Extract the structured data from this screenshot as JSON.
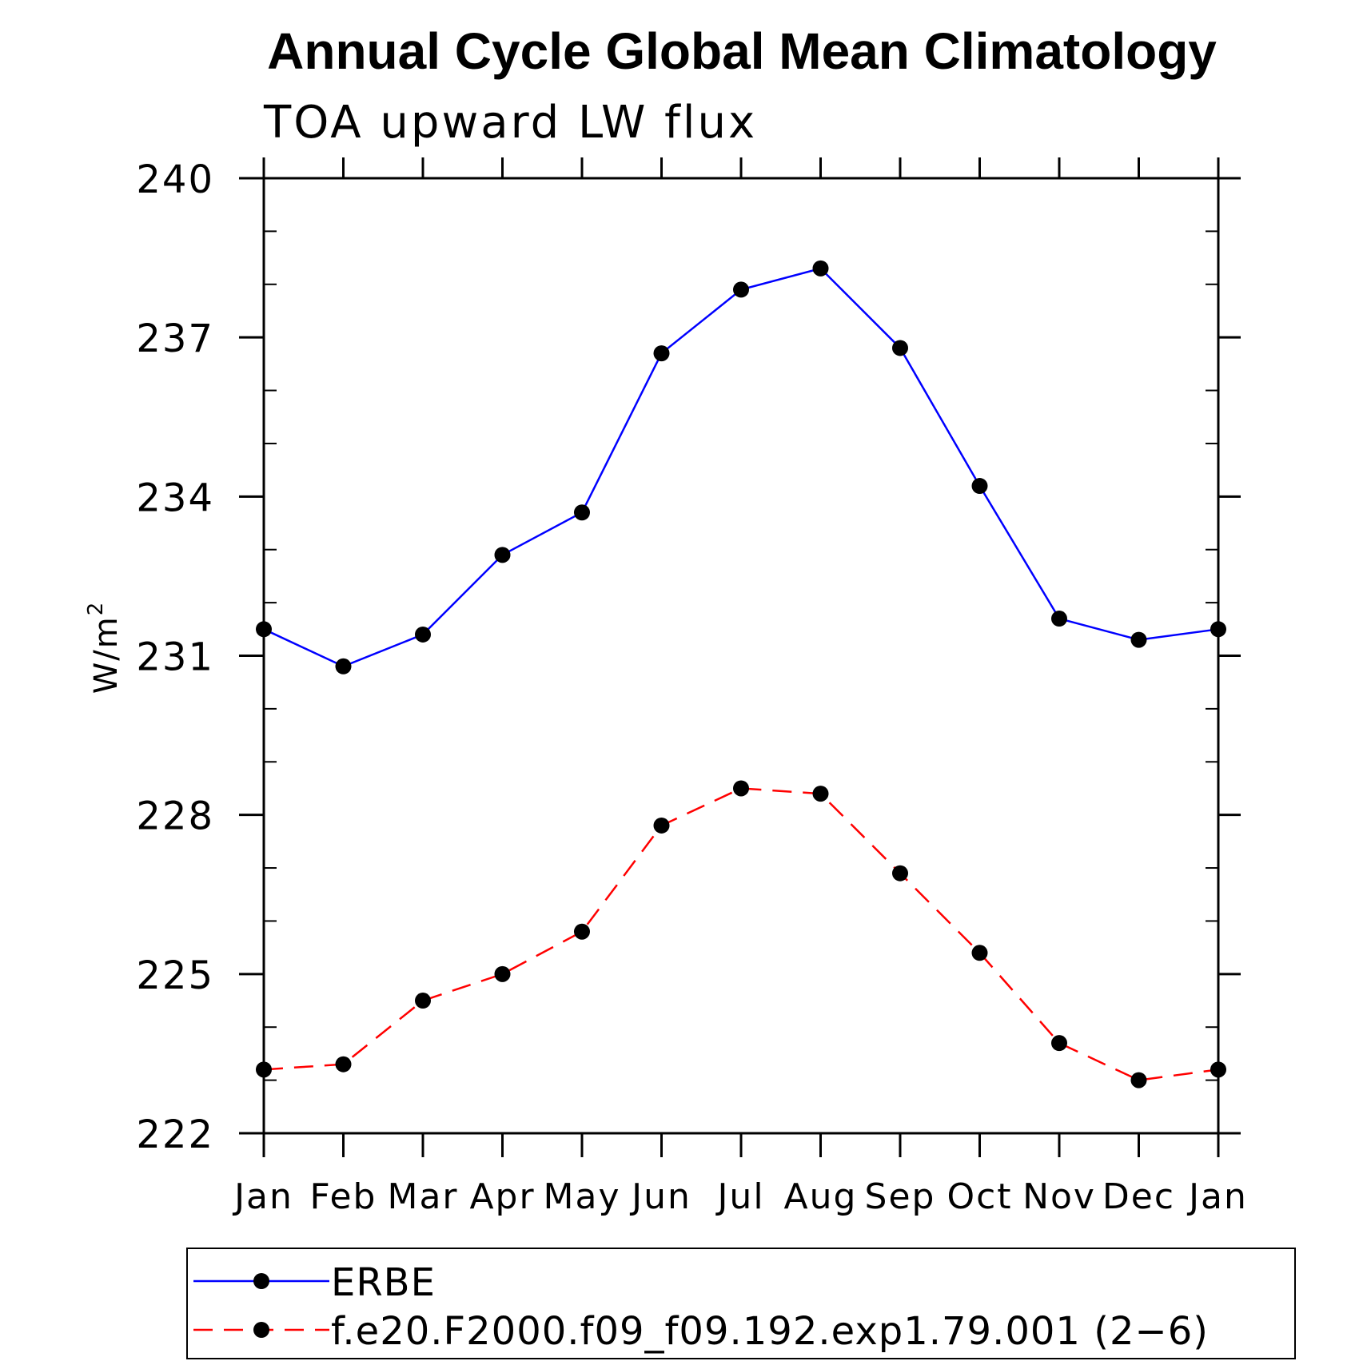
{
  "chart_data": {
    "type": "line",
    "title": "Annual Cycle Global Mean Climatology",
    "subtitle": "TOA upward LW flux",
    "xlabel": "",
    "ylabel": "W/m",
    "ylabel_superscript": "2",
    "categories": [
      "Jan",
      "Feb",
      "Mar",
      "Apr",
      "May",
      "Jun",
      "Jul",
      "Aug",
      "Sep",
      "Oct",
      "Nov",
      "Dec",
      "Jan"
    ],
    "ylim": [
      222,
      240
    ],
    "yticks": [
      240,
      237,
      234,
      231,
      228,
      225,
      222
    ],
    "ytick_labels": [
      "240",
      "237",
      "234",
      "231",
      "228",
      "225",
      "222"
    ],
    "legend_position": "bottom",
    "series": [
      {
        "name": "ERBE",
        "color": "#0000ff",
        "line_style": "solid",
        "marker": "filled-circle",
        "values": [
          231.5,
          230.8,
          231.4,
          232.9,
          233.7,
          236.7,
          237.9,
          238.3,
          236.8,
          234.2,
          231.7,
          231.3,
          231.5
        ]
      },
      {
        "name": "f.e20.F2000.f09_f09.192.exp1.79.001 (2−6)",
        "color": "#ff0000",
        "line_style": "dashed",
        "marker": "filled-circle",
        "values": [
          223.2,
          223.3,
          224.5,
          225.0,
          225.8,
          227.8,
          228.5,
          228.4,
          226.9,
          225.4,
          223.7,
          223.0,
          223.2
        ]
      }
    ]
  }
}
